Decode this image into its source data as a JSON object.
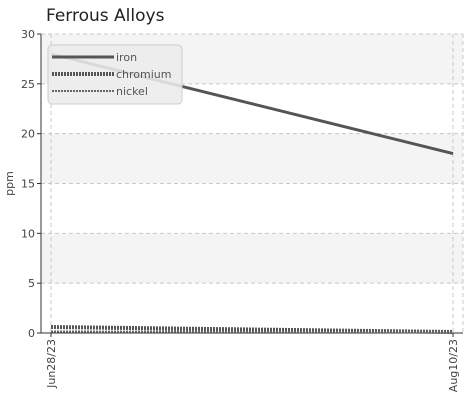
{
  "chart_data": {
    "type": "line",
    "title": "Ferrous Alloys",
    "xlabel": "",
    "ylabel": "ppm",
    "x": [
      "Jun28/23",
      "Aug10/23"
    ],
    "xticks": [
      "Jun28/23",
      "Aug10/23"
    ],
    "ylim": [
      0,
      30
    ],
    "yticks": [
      0,
      5,
      10,
      15,
      20,
      25,
      30
    ],
    "grid": true,
    "legend_position": "top-left",
    "series": [
      {
        "name": "iron",
        "values": [
          28,
          18
        ],
        "color": "#555555",
        "style": "solid"
      },
      {
        "name": "chromium",
        "values": [
          0.6,
          0.1
        ],
        "color": "#555555",
        "style": "dashed"
      },
      {
        "name": "nickel",
        "values": [
          0.15,
          0.1
        ],
        "color": "#666666",
        "style": "dotted"
      }
    ]
  }
}
